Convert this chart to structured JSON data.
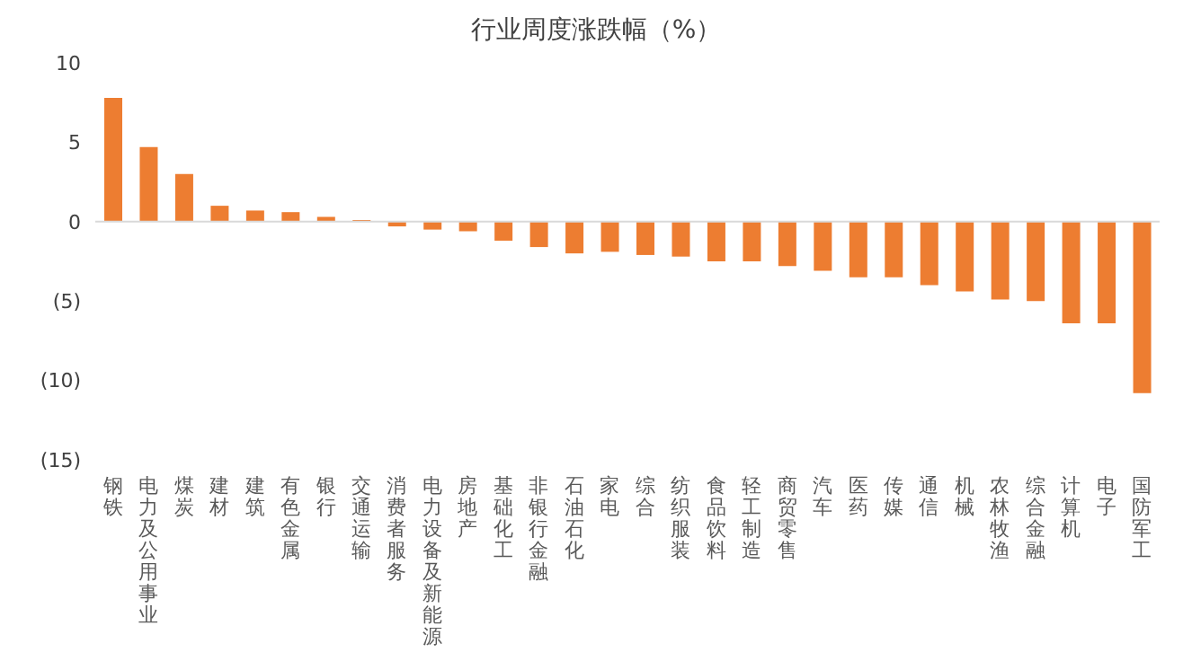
{
  "chart_data": {
    "type": "bar",
    "title": "行业周度涨跌幅（%）",
    "categories": [
      "钢铁",
      "电力及公用事业",
      "煤炭",
      "建材",
      "建筑",
      "有色金属",
      "银行",
      "交通运输",
      "消费者服务",
      "电力设备及新能源",
      "房地产",
      "基础化工",
      "非银行金融",
      "石油石化",
      "家电",
      "综合",
      "纺织服装",
      "食品饮料",
      "轻工制造",
      "商贸零售",
      "汽车",
      "医药",
      "传媒",
      "通信",
      "机械",
      "农林牧渔",
      "综合金融",
      "计算机",
      "电子",
      "国防军工"
    ],
    "values": [
      7.8,
      4.7,
      3.0,
      1.0,
      0.7,
      0.6,
      0.3,
      0.1,
      -0.3,
      -0.5,
      -0.6,
      -1.2,
      -1.6,
      -2.0,
      -1.9,
      -2.1,
      -2.2,
      -2.5,
      -2.5,
      -2.8,
      -3.1,
      -3.5,
      -3.5,
      -4.0,
      -4.4,
      -4.9,
      -5.0,
      -6.4,
      -6.4,
      -10.8
    ],
    "color": "#ed7d31",
    "ylim": [
      -15,
      10
    ],
    "yticks": [
      {
        "value": -15,
        "label": "(15)"
      },
      {
        "value": -10,
        "label": "(10)"
      },
      {
        "value": -5,
        "label": "(5)"
      },
      0,
      5,
      10
    ]
  }
}
